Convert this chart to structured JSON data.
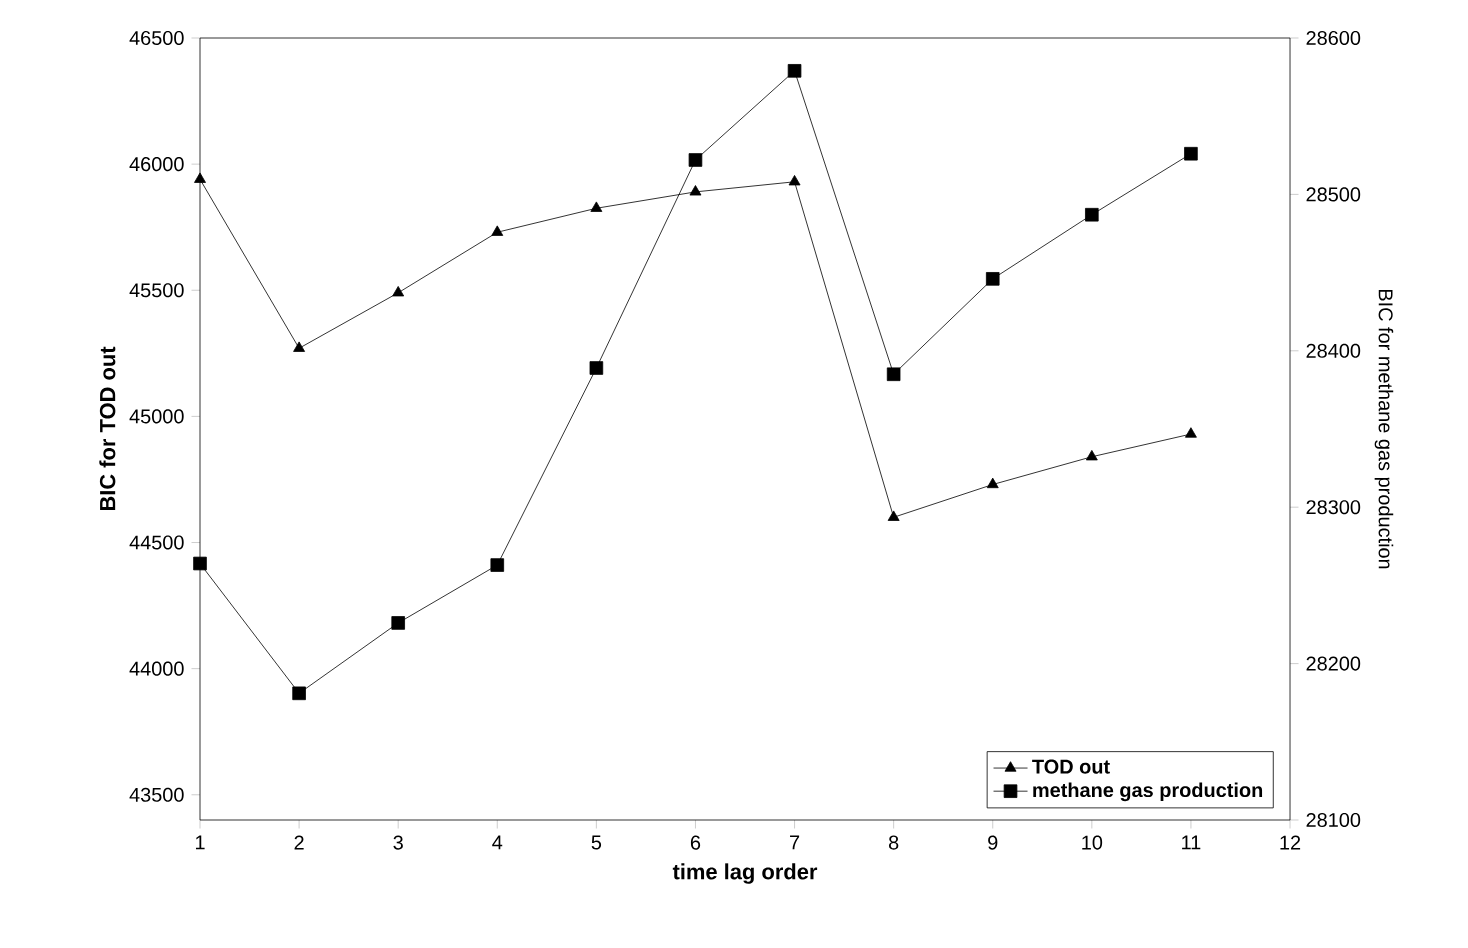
{
  "chart_data": {
    "type": "line",
    "xlabel": "time lag order",
    "ylabel": "BIC for TOD out",
    "y2label": "BIC for methane gas production",
    "x": [
      1,
      2,
      3,
      4,
      5,
      6,
      7,
      8,
      9,
      10,
      11
    ],
    "series": [
      {
        "name": "TOD out",
        "color": "#000000",
        "marker": "triangle",
        "values": [
          45940,
          45270,
          45490,
          45730,
          45825,
          45890,
          45930,
          44600,
          44730,
          44840,
          44930
        ]
      },
      {
        "name": "methane gas production",
        "color": "#000000",
        "marker": "square",
        "axis": "y2",
        "values": [
          28264,
          28181,
          28226,
          28263,
          28389,
          28522,
          28579,
          28385,
          28446,
          28487,
          28526
        ]
      }
    ],
    "xlim": [
      1,
      12
    ],
    "xticks": [
      1,
      2,
      3,
      4,
      5,
      6,
      7,
      8,
      9,
      10,
      11,
      12
    ],
    "ylim": [
      43400,
      46500
    ],
    "yticks": [
      43500,
      44000,
      44500,
      45000,
      45500,
      46000,
      46500
    ],
    "y2lim": [
      28100,
      28600
    ],
    "y2ticks": [
      28100,
      28200,
      28300,
      28400,
      28500,
      28600
    ],
    "legend": "bottom right",
    "grid": false,
    "line_style": "solid"
  }
}
